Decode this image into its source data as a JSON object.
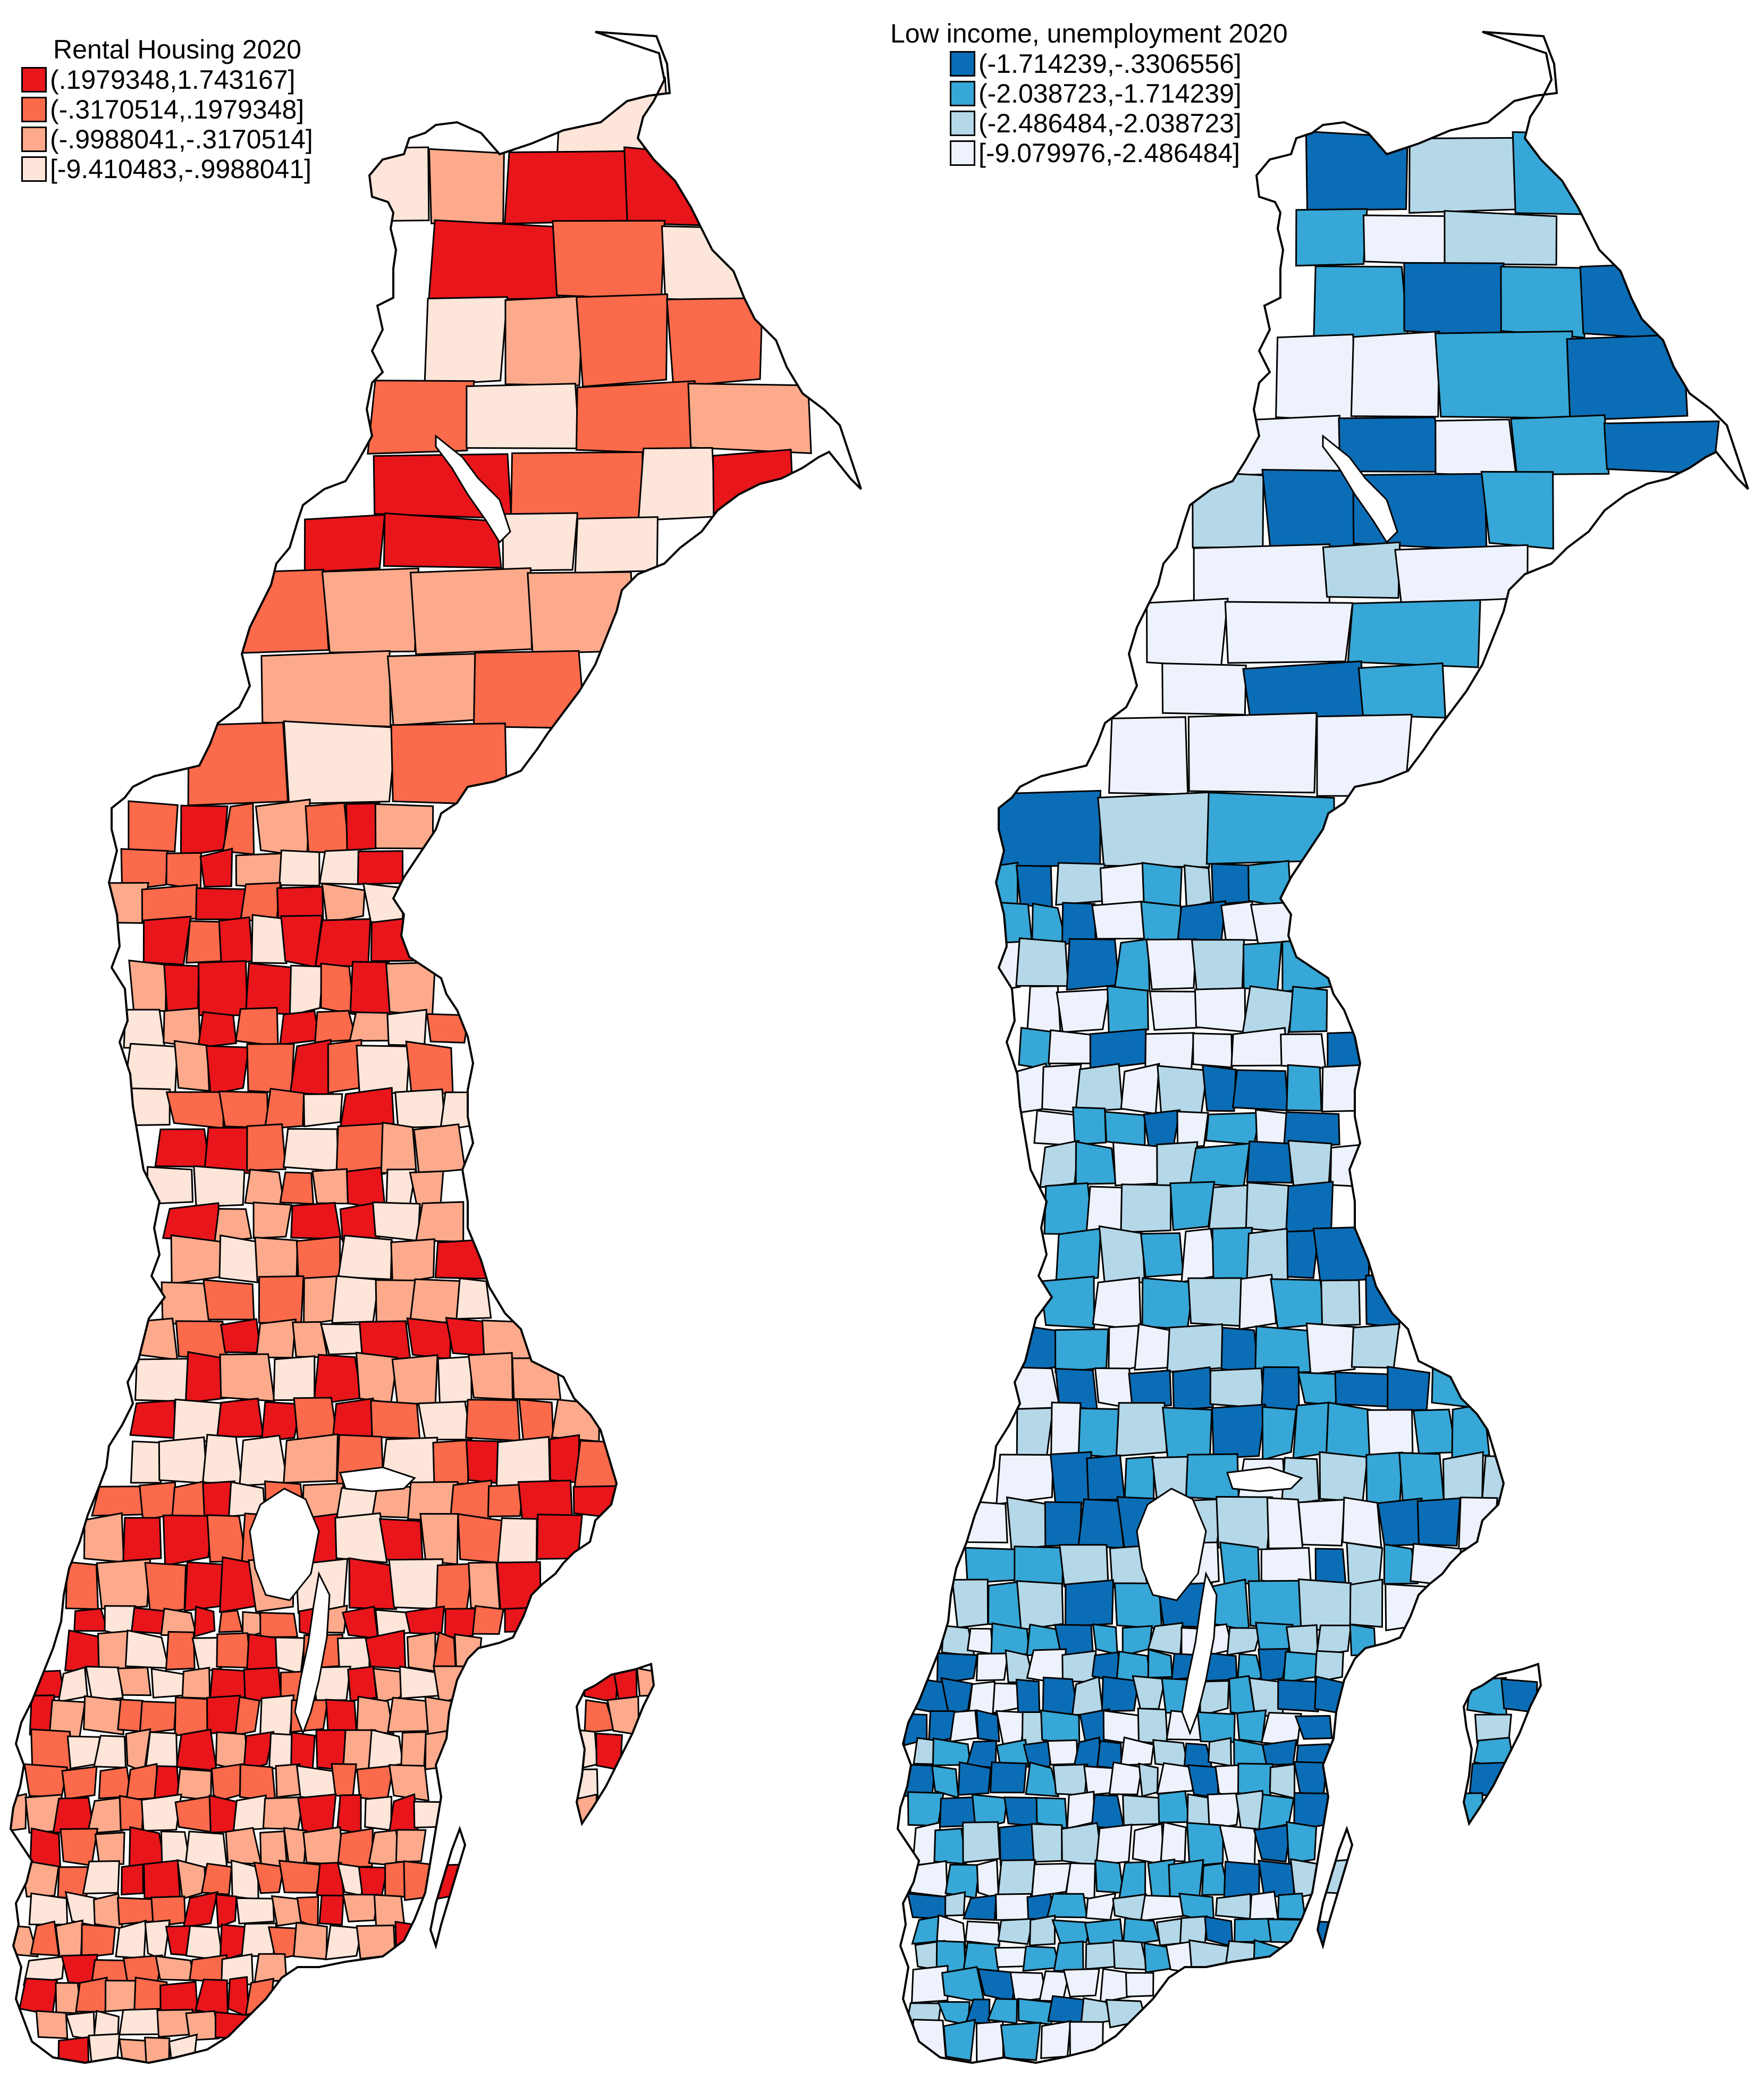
{
  "maps": [
    {
      "title": "Rental Housing 2020",
      "legend": [
        {
          "label": "(.1979348,1.743167]",
          "color": "#e8151b"
        },
        {
          "label": "(-.3170514,.1979348]",
          "color": "#fb6a4a"
        },
        {
          "label": "(-.9988041,-.3170514]",
          "color": "#fcaa8b"
        },
        {
          "label": "[-9.410483,-.9988041]",
          "color": "#fee5d9"
        }
      ]
    },
    {
      "title": "Low income, unemployment 2020",
      "legend": [
        {
          "label": "(-1.714239,-.3306556]",
          "color": "#0b6db5"
        },
        {
          "label": "(-2.038723,-1.714239]",
          "color": "#36a7d6"
        },
        {
          "label": "(-2.486484,-2.038723]",
          "color": "#b4d8e8"
        },
        {
          "label": "[-9.079976,-2.486484]",
          "color": "#eef2fd"
        }
      ]
    }
  ]
}
